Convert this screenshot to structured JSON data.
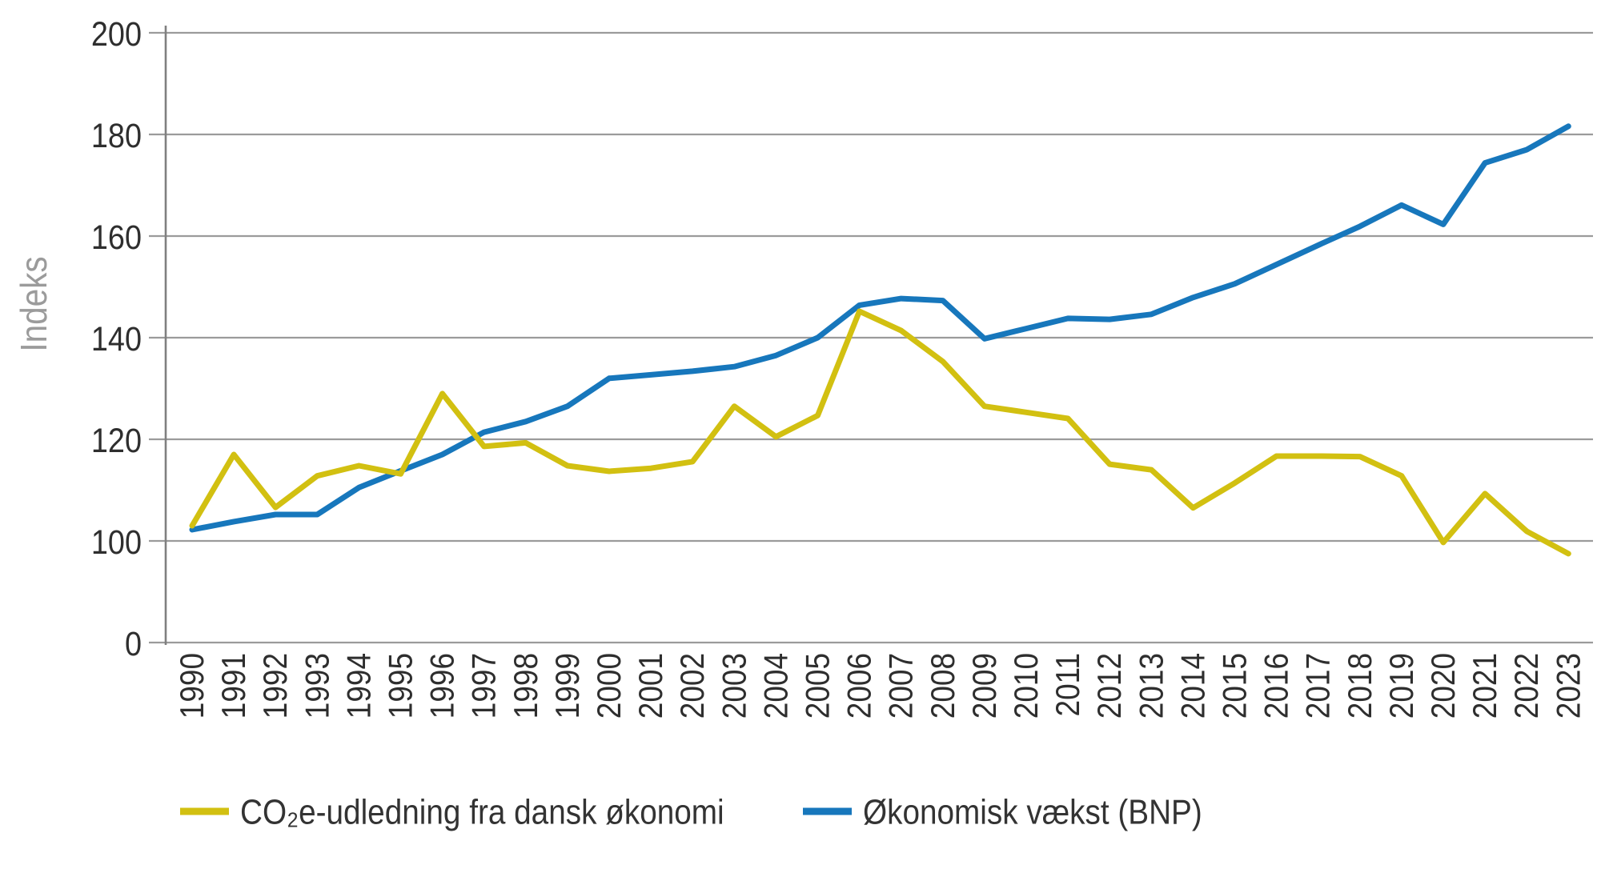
{
  "chart": {
    "y_axis_title": "Indeks",
    "y_ticks": [
      "200",
      "180",
      "160",
      "140",
      "120",
      "100",
      "0"
    ],
    "colors": {
      "co2e_line": "#d2c011",
      "bnp_line": "#1777bc",
      "gridline": "#9b9b9b",
      "axis_line": "#808080",
      "tick_text": "#2e2e2e",
      "axis_title_text": "#9b9b9b",
      "legend_text": "#333333",
      "background": "#ffffff"
    },
    "legend": [
      {
        "label": "CO₂e-udledning fra dansk økonomi",
        "series": "co2e"
      },
      {
        "label": "Økonomisk vækst (BNP)",
        "series": "bnp"
      }
    ]
  },
  "chart_data": {
    "type": "line",
    "title": "",
    "xlabel": "",
    "ylabel": "Indeks",
    "ylim": [
      0,
      200
    ],
    "y_axis_note": "broken axis: 0 then 100-200 in steps of 20",
    "grid": "horizontal",
    "legend_position": "bottom",
    "categories": [
      "1990",
      "1991",
      "1992",
      "1993",
      "1994",
      "1995",
      "1996",
      "1997",
      "1998",
      "1999",
      "2000",
      "2001",
      "2002",
      "2003",
      "2004",
      "2005",
      "2006",
      "2007",
      "2008",
      "2009",
      "2010",
      "2011",
      "2012",
      "2013",
      "2014",
      "2015",
      "2016",
      "2017",
      "2018",
      "2019",
      "2020",
      "2021",
      "2022",
      "2023"
    ],
    "series": [
      {
        "key": "co2e",
        "name": "CO₂e-udledning fra dansk økonomi",
        "color": "#d2c011",
        "values": [
          103,
          117,
          106.6,
          112.8,
          114.8,
          113.2,
          129,
          118.6,
          119.3,
          114.8,
          113.7,
          114.3,
          115.6,
          126.5,
          120.5,
          124.7,
          145.2,
          141.4,
          135.3,
          126.5,
          125.3,
          124.1,
          115.1,
          114,
          106.5,
          111.4,
          116.7,
          116.7,
          116.6,
          112.8,
          99.7,
          109.3,
          101.9,
          97.5
        ]
      },
      {
        "key": "bnp",
        "name": "Økonomisk vækst (BNP)",
        "color": "#1777bc",
        "values": [
          102.2,
          103.8,
          105.2,
          105.2,
          110.5,
          113.8,
          117,
          121.4,
          123.5,
          126.5,
          132,
          132.7,
          133.4,
          134.3,
          136.5,
          140,
          146.4,
          147.7,
          147.3,
          139.8,
          141.8,
          143.8,
          143.6,
          144.6,
          147.9,
          150.6,
          154.4,
          158.2,
          161.9,
          166.1,
          162.3,
          174.4,
          177,
          181.6
        ]
      }
    ]
  }
}
